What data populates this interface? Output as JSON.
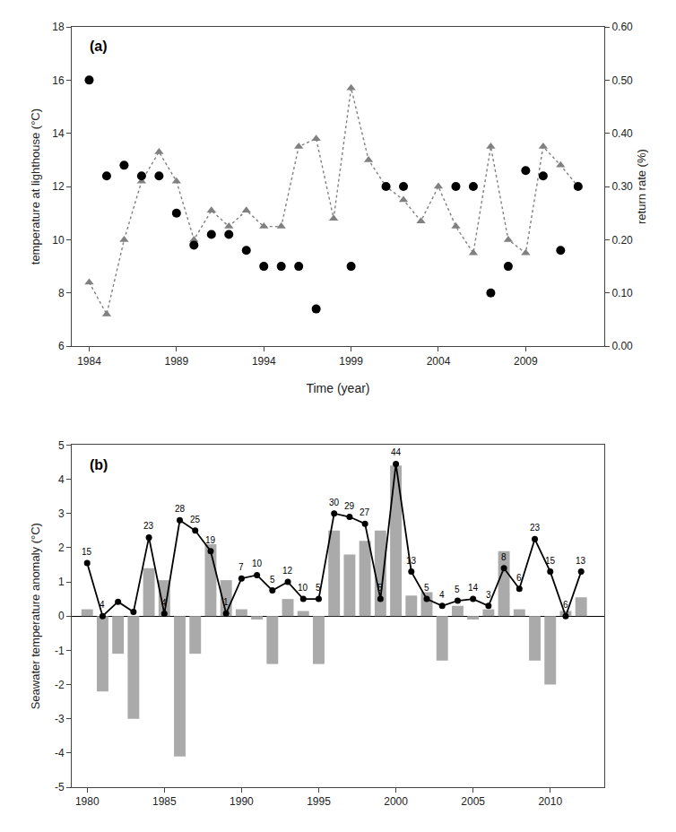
{
  "chart_data": [
    {
      "type": "line",
      "title": "(a)",
      "x_label": "Time (year)",
      "y_label": "temperature at lighthouse (°C)",
      "y2_label": "return rate (%)",
      "xlim": [
        1983,
        2013.5
      ],
      "xticks": [
        1984,
        1989,
        1994,
        1999,
        2004,
        2009
      ],
      "ylim": [
        6.0,
        18.0
      ],
      "yticks": [
        6,
        8,
        10,
        12,
        14,
        16,
        18
      ],
      "y2lim": [
        0.0,
        0.6
      ],
      "y2ticks": [
        {
          "value": 0.0,
          "label": "0.00"
        },
        {
          "value": 0.1,
          "label": "0.10"
        },
        {
          "value": 0.2,
          "label": "0.20"
        },
        {
          "value": 0.3,
          "label": "0.30"
        },
        {
          "value": 0.4,
          "label": "0.40"
        },
        {
          "value": 0.5,
          "label": "0.50"
        },
        {
          "value": 0.6,
          "label": "0.60"
        }
      ],
      "grid": false,
      "series": [
        {
          "type": "line",
          "x": [
            1984,
            1985,
            1986,
            1987,
            1988,
            1989,
            1990,
            1991,
            1992,
            1993,
            1994,
            1995,
            1996,
            1997,
            1998,
            1999,
            2000,
            2001,
            2002,
            2003,
            2004,
            2005,
            2006,
            2007,
            2008,
            2009,
            2010,
            2011,
            2012
          ],
          "values": [
            8.4,
            7.2,
            10.0,
            12.2,
            13.3,
            12.2,
            10.0,
            11.1,
            10.5,
            11.1,
            10.5,
            10.5,
            13.5,
            13.8,
            10.8,
            15.7,
            13.0,
            12.0,
            11.5,
            10.7,
            12.0,
            10.5,
            9.5,
            13.5,
            10.0,
            9.5,
            13.5,
            12.8,
            12.0
          ],
          "color": "gray",
          "marker": "triangle",
          "line_style": "dotted"
        },
        {
          "type": "scatter",
          "axis": "y2",
          "x": [
            1984,
            1985,
            1986,
            1987,
            1988,
            1989,
            1990,
            1991,
            1992,
            1993,
            1994,
            1995,
            1996,
            1997,
            1999,
            2001,
            2002,
            2005,
            2006,
            2007,
            2008,
            2009,
            2010,
            2011,
            2012
          ],
          "values": [
            0.5,
            0.32,
            0.34,
            0.32,
            0.32,
            0.25,
            0.19,
            0.21,
            0.21,
            0.18,
            0.15,
            0.15,
            0.15,
            0.07,
            0.15,
            0.3,
            0.3,
            0.3,
            0.3,
            0.1,
            0.15,
            0.33,
            0.32,
            0.18,
            0.3
          ],
          "color": "black",
          "marker": "circle"
        }
      ]
    },
    {
      "type": "bar",
      "title": "(b)",
      "y_label": "Seawater temperature anomaly (°C)",
      "xlim": [
        1979,
        2013.5
      ],
      "xticks": [
        1980,
        1985,
        1990,
        1995,
        2000,
        2005,
        2010
      ],
      "ylim": [
        -5,
        5
      ],
      "yticks": [
        -5,
        -4,
        -3,
        -2,
        -1,
        0,
        1,
        2,
        3,
        4,
        5
      ],
      "grid": false,
      "series": [
        {
          "type": "bar",
          "x": [
            1980,
            1981,
            1982,
            1983,
            1984,
            1985,
            1986,
            1987,
            1988,
            1989,
            1990,
            1991,
            1992,
            1993,
            1994,
            1995,
            1996,
            1997,
            1998,
            1999,
            2000,
            2001,
            2002,
            2003,
            2004,
            2005,
            2006,
            2007,
            2008,
            2009,
            2010,
            2011,
            2012
          ],
          "values": [
            0.2,
            -2.2,
            -1.1,
            -3.0,
            1.4,
            1.05,
            -4.1,
            -1.1,
            2.1,
            1.05,
            0.2,
            -0.1,
            -1.4,
            0.5,
            0.15,
            -1.4,
            2.5,
            1.8,
            2.2,
            2.5,
            4.4,
            0.6,
            0.7,
            -1.3,
            0.3,
            -0.1,
            0.2,
            1.9,
            0.2,
            -1.3,
            -2.0,
            0.15,
            0.55
          ],
          "color": "#aaaaaa"
        },
        {
          "type": "line",
          "x": [
            1980,
            1981,
            1982,
            1983,
            1984,
            1985,
            1986,
            1987,
            1988,
            1989,
            1990,
            1991,
            1992,
            1993,
            1994,
            1995,
            1996,
            1997,
            1998,
            1999,
            2000,
            2001,
            2002,
            2003,
            2004,
            2005,
            2006,
            2007,
            2008,
            2009,
            2010,
            2011,
            2012
          ],
          "values": [
            1.55,
            0.0,
            0.42,
            0.12,
            2.3,
            0.07,
            2.8,
            2.5,
            1.9,
            0.08,
            1.1,
            1.2,
            0.75,
            1.0,
            0.5,
            0.5,
            3.0,
            2.9,
            2.7,
            0.5,
            4.45,
            1.3,
            0.5,
            0.3,
            0.45,
            0.5,
            0.3,
            1.4,
            0.8,
            2.25,
            1.3,
            0.0,
            1.3
          ],
          "color": "black",
          "marker": "circle",
          "line_style": "solid"
        }
      ],
      "annotations": [
        {
          "x": 1980,
          "y": 1.55,
          "text": "15"
        },
        {
          "x": 1981,
          "y": 0.0,
          "text": "4"
        },
        {
          "x": 1984,
          "y": 2.3,
          "text": "23"
        },
        {
          "x": 1985,
          "y": 0.07,
          "text": "4"
        },
        {
          "x": 1986,
          "y": 2.8,
          "text": "28"
        },
        {
          "x": 1987,
          "y": 2.5,
          "text": "25"
        },
        {
          "x": 1988,
          "y": 1.9,
          "text": "19"
        },
        {
          "x": 1989,
          "y": 0.08,
          "text": "1"
        },
        {
          "x": 1990,
          "y": 1.1,
          "text": "7"
        },
        {
          "x": 1991,
          "y": 1.2,
          "text": "10"
        },
        {
          "x": 1992,
          "y": 0.75,
          "text": "5"
        },
        {
          "x": 1993,
          "y": 1.0,
          "text": "12"
        },
        {
          "x": 1994,
          "y": 0.5,
          "text": "10"
        },
        {
          "x": 1995,
          "y": 0.5,
          "text": "5"
        },
        {
          "x": 1996,
          "y": 3.0,
          "text": "30"
        },
        {
          "x": 1997,
          "y": 2.9,
          "text": "29"
        },
        {
          "x": 1998,
          "y": 2.7,
          "text": "27"
        },
        {
          "x": 1999,
          "y": 0.5,
          "text": "5"
        },
        {
          "x": 2000,
          "y": 4.45,
          "text": "44"
        },
        {
          "x": 2001,
          "y": 1.3,
          "text": "13"
        },
        {
          "x": 2002,
          "y": 0.5,
          "text": "5"
        },
        {
          "x": 2003,
          "y": 0.3,
          "text": "4"
        },
        {
          "x": 2004,
          "y": 0.45,
          "text": "5"
        },
        {
          "x": 2005,
          "y": 0.5,
          "text": "14"
        },
        {
          "x": 2006,
          "y": 0.3,
          "text": "3"
        },
        {
          "x": 2007,
          "y": 1.4,
          "text": "8"
        },
        {
          "x": 2008,
          "y": 0.8,
          "text": "6"
        },
        {
          "x": 2009,
          "y": 2.25,
          "text": "23"
        },
        {
          "x": 2010,
          "y": 1.3,
          "text": "15"
        },
        {
          "x": 2011,
          "y": 0.0,
          "text": "6"
        },
        {
          "x": 2012,
          "y": 1.3,
          "text": "13"
        }
      ]
    }
  ]
}
